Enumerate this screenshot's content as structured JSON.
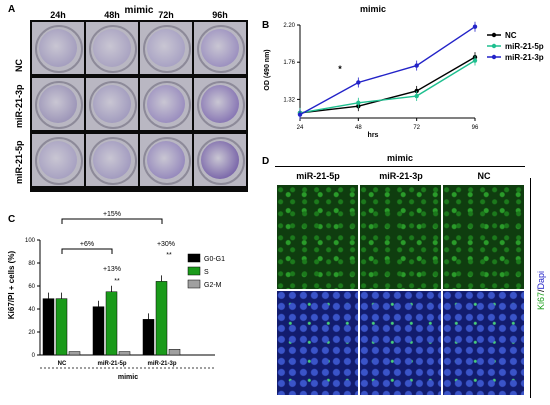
{
  "panelA": {
    "label": "A",
    "title": "mimic",
    "columns": [
      "24h",
      "48h",
      "72h",
      "96h"
    ],
    "rows": [
      "NC",
      "miR-21-3p",
      "miR-21-5p"
    ]
  },
  "panelB": {
    "label": "B",
    "title": "mimic",
    "ylabel": "OD (490 nm)",
    "xlabel": "hrs",
    "legend": [
      "NC",
      "miR-21-5p",
      "miR-21-3p"
    ],
    "star": "*",
    "colors": {
      "NC": "#000000",
      "miR-21-5p": "#1fbf8f",
      "miR-21-3p": "#2323c8"
    }
  },
  "panelC": {
    "label": "C",
    "ylabel": "Ki67/PI + cells (%)",
    "xlabel": "mimic",
    "brackets": [
      "+15%",
      "+6%"
    ],
    "annotations": [
      "+13%",
      "+30%",
      "**",
      "**"
    ],
    "legend": [
      "G0-G1",
      "S",
      "G2-M"
    ],
    "colors": {
      "G0-G1": "#000000",
      "S": "#1a9a1a",
      "G2-M": "#a0a0a0"
    }
  },
  "panelD": {
    "label": "D",
    "title": "mimic",
    "columns": [
      "miR-21-5p",
      "miR-21-3p",
      "NC"
    ],
    "side_label_1": "Ki67",
    "side_label_sep": "/",
    "side_label_2": "Dapi"
  },
  "chart_data": [
    {
      "type": "line",
      "title": "mimic",
      "xlabel": "hrs",
      "ylabel": "OD (490 nm)",
      "x": [
        24,
        48,
        72,
        96
      ],
      "ylim": [
        1.1,
        2.2
      ],
      "yticks": [
        1.32,
        1.76,
        2.2
      ],
      "series": [
        {
          "name": "NC",
          "values": [
            1.16,
            1.24,
            1.42,
            1.82
          ]
        },
        {
          "name": "miR-21-5p",
          "values": [
            1.16,
            1.28,
            1.36,
            1.78
          ]
        },
        {
          "name": "miR-21-3p",
          "values": [
            1.14,
            1.52,
            1.72,
            2.18
          ]
        }
      ],
      "legend_position": "top-right"
    },
    {
      "type": "bar",
      "xlabel": "mimic",
      "ylabel": "Ki67/PI + cells (%)",
      "categories": [
        "NC",
        "miR-21-5p",
        "miR-21-3p"
      ],
      "ylim": [
        0,
        100
      ],
      "yticks": [
        0,
        20,
        40,
        60,
        80,
        100
      ],
      "series": [
        {
          "name": "G0-G1",
          "values": [
            49,
            42,
            31
          ]
        },
        {
          "name": "S",
          "values": [
            49,
            55,
            64
          ]
        },
        {
          "name": "G2-M",
          "values": [
            3,
            3,
            5
          ]
        }
      ],
      "legend_position": "right"
    }
  ]
}
